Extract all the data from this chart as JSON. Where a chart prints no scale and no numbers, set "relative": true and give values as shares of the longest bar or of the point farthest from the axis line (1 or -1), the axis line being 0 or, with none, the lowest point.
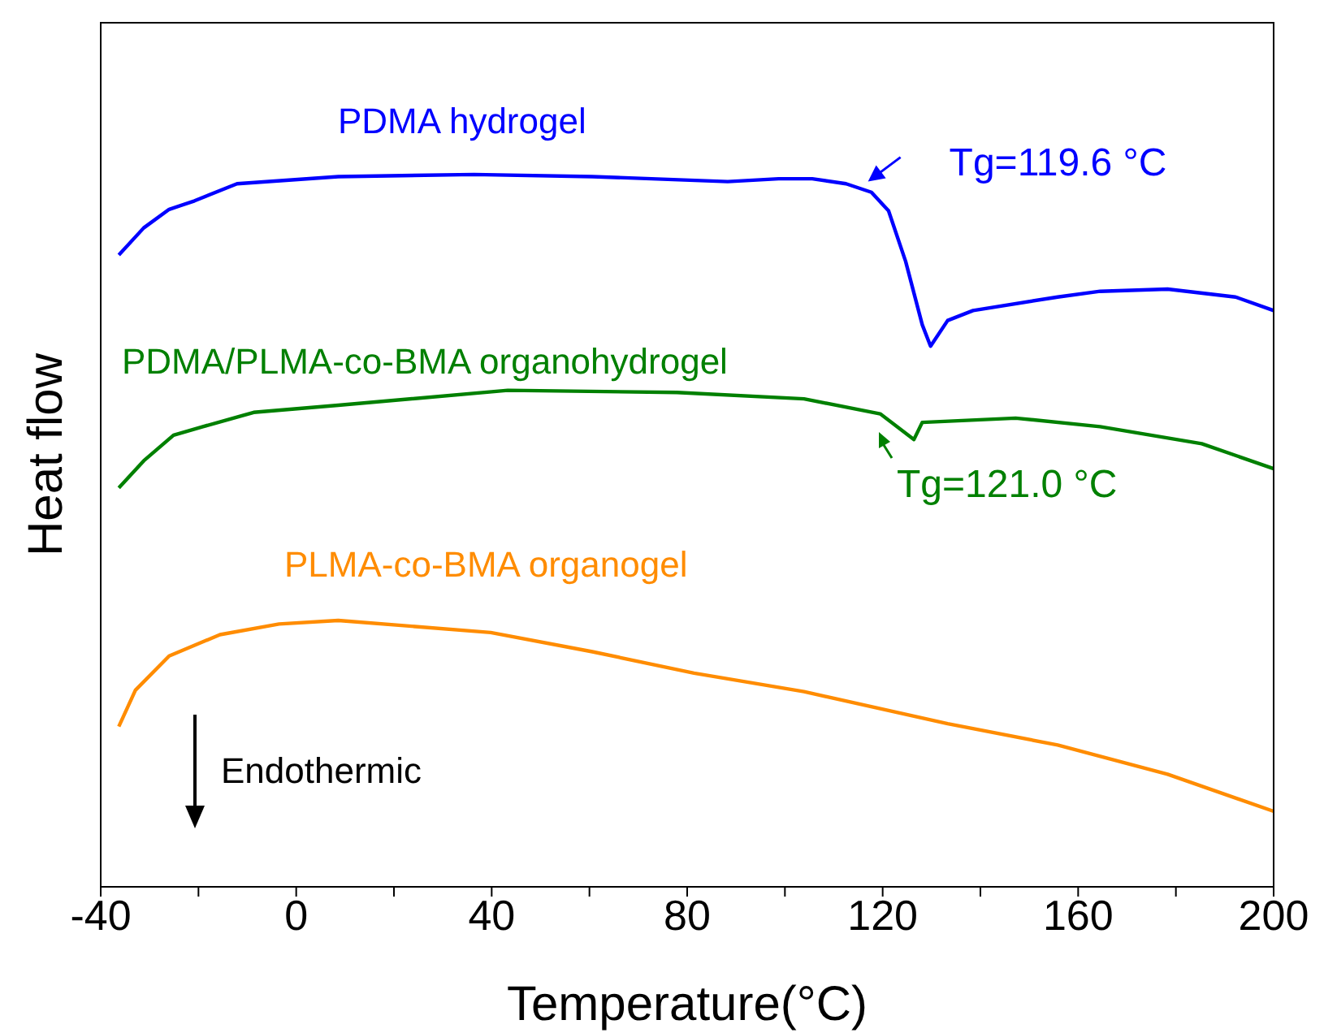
{
  "chart_data": {
    "type": "line",
    "relative": true,
    "xlabel": "Temperature(°C)",
    "ylabel": "Heat flow",
    "xlim": [
      -40,
      200
    ],
    "xticks": [
      -40,
      {
        "value": -20,
        "label": null
      },
      0,
      {
        "value": 20,
        "label": null
      },
      40,
      {
        "value": 60,
        "label": null
      },
      80,
      {
        "value": 100,
        "label": null
      },
      120,
      {
        "value": 140,
        "label": null
      },
      160,
      {
        "value": 180,
        "label": null
      },
      200
    ],
    "legend": false,
    "grid": false,
    "marker": "none",
    "line_style": "solid",
    "series": [
      {
        "name": "PDMA hydrogel",
        "color": "#0000ff",
        "x": [
          -36.3,
          -31.2,
          -26,
          -20.8,
          -12.1,
          8.6,
          36.4,
          60.6,
          88.3,
          98.7,
          105.6,
          112.5,
          117.7,
          121.2,
          124.7,
          128.1,
          129.8,
          133.3,
          138.5,
          155.8,
          164.5,
          178.3,
          192.2,
          200
        ],
        "values": [
          0.887,
          0.925,
          0.951,
          0.963,
          0.987,
          0.997,
          1.0,
          0.997,
          0.99,
          0.994,
          0.994,
          0.987,
          0.975,
          0.949,
          0.878,
          0.789,
          0.759,
          0.795,
          0.809,
          0.828,
          0.836,
          0.839,
          0.828,
          0.809
        ]
      },
      {
        "name": "PDMA/PLMA-co-BMA organohydrogel",
        "color": "#008000",
        "x": [
          -36.3,
          -31.2,
          -25.1,
          -19.1,
          -8.7,
          8.6,
          43.3,
          77.9,
          103.9,
          119.5,
          126.4,
          128.1,
          147.2,
          164.5,
          185.3,
          200
        ],
        "values": [
          0.56,
          0.598,
          0.634,
          0.646,
          0.666,
          0.676,
          0.697,
          0.694,
          0.685,
          0.664,
          0.628,
          0.652,
          0.658,
          0.646,
          0.622,
          0.587
        ]
      },
      {
        "name": "PLMA-co-BMA organogel",
        "color": "#ff8c00",
        "x": [
          -36.3,
          -32.9,
          -26,
          -15.6,
          -3.5,
          8.6,
          39.8,
          60.6,
          81.4,
          103.9,
          133.3,
          155.8,
          178.3,
          200
        ],
        "values": [
          0.225,
          0.276,
          0.324,
          0.354,
          0.369,
          0.374,
          0.357,
          0.33,
          0.3,
          0.274,
          0.229,
          0.199,
          0.158,
          0.106
        ]
      }
    ],
    "annotations": [
      {
        "text": "Tg=119.6 °C",
        "x": 117,
        "y": 0.99
      },
      "Tg=121.0 °C",
      "Endothermic"
    ]
  }
}
